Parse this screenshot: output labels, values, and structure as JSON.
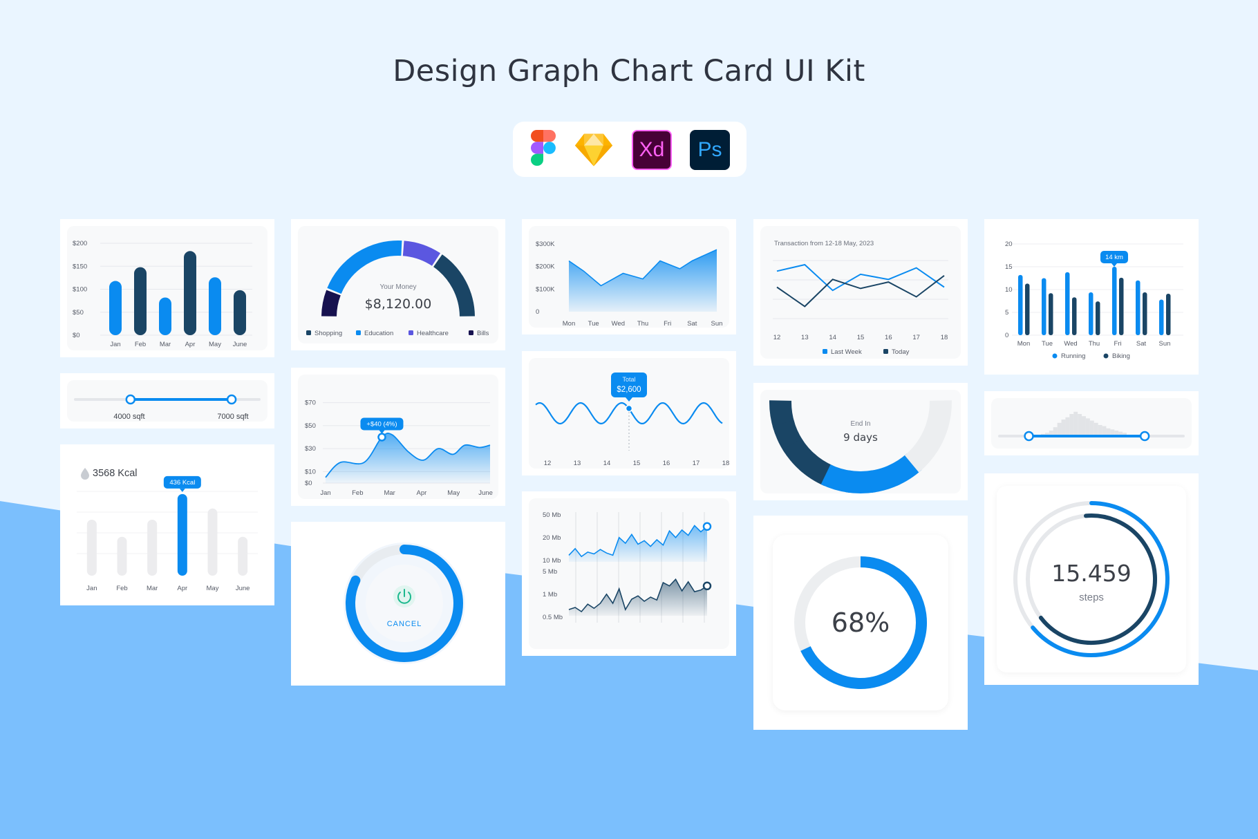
{
  "page": {
    "title": "Design Graph Chart Card UI Kit",
    "tools": [
      {
        "name": "Figma",
        "icon": "figma-icon"
      },
      {
        "name": "Sketch",
        "icon": "sketch-icon",
        "label": ""
      },
      {
        "name": "Adobe XD",
        "icon": "xd-icon",
        "label": "Xd"
      },
      {
        "name": "Photoshop",
        "icon": "ps-icon",
        "label": "Ps"
      }
    ]
  },
  "colors": {
    "navy": "#1a4565",
    "blue": "#0a8bf0",
    "purple": "#5b57e0",
    "darknavy": "#17124f",
    "bg_light": "#eaf5ff",
    "bg_wave": "#7bbffd"
  },
  "monthly_bars": {
    "chart_data": {
      "type": "bar",
      "categories": [
        "Jan",
        "Feb",
        "Mar",
        "Apr",
        "May",
        "June"
      ],
      "values": [
        118,
        148,
        82,
        183,
        126,
        98
      ],
      "y_ticks": [
        "$200",
        "$150",
        "$100",
        "$50",
        "$0"
      ],
      "ylim": [
        0,
        200
      ],
      "bar_colors": [
        "#0a8bf0",
        "#1a4565",
        "#0a8bf0",
        "#1a4565",
        "#0a8bf0",
        "#1a4565"
      ]
    }
  },
  "money_gauge": {
    "label": "Your Money",
    "value": "$8,120.00",
    "chart_data": {
      "type": "pie",
      "categories": [
        "Bills",
        "Education",
        "Healthcare",
        "Shopping"
      ],
      "values": [
        12,
        40,
        17,
        31
      ],
      "colors": [
        "#17124f",
        "#0a8bf0",
        "#5b57e0",
        "#1a4565"
      ]
    },
    "legend": [
      {
        "label": "Shopping",
        "color": "#1a4565"
      },
      {
        "label": "Education",
        "color": "#0a8bf0"
      },
      {
        "label": "Healthcare",
        "color": "#5b57e0"
      },
      {
        "label": "Bills",
        "color": "#17124f"
      }
    ]
  },
  "weekly_area": {
    "chart_data": {
      "type": "area",
      "categories": [
        "Mon",
        "Tue",
        "Wed",
        "Thu",
        "Fri",
        "Sat",
        "Sun"
      ],
      "values": [
        225,
        180,
        115,
        170,
        145,
        225,
        190,
        225,
        255,
        275
      ],
      "x": [
        0,
        0.6,
        1.3,
        2.2,
        3.0,
        3.7,
        4.5,
        5.0,
        5.6,
        6.0
      ],
      "y_ticks": [
        "$300K",
        "$200K",
        "$100K",
        "0"
      ],
      "ylim": [
        0,
        300
      ]
    }
  },
  "transactions": {
    "caption": "Transaction from 12-18 May, 2023",
    "chart_data": {
      "type": "line",
      "x": [
        "12",
        "13",
        "14",
        "15",
        "16",
        "17",
        "18"
      ],
      "series": [
        {
          "name": "Last Week",
          "values": [
            75,
            85,
            45,
            70,
            62,
            80,
            50
          ]
        },
        {
          "name": "Today",
          "values": [
            50,
            20,
            62,
            48,
            58,
            35,
            68
          ]
        }
      ],
      "ylim": [
        0,
        100
      ]
    }
  },
  "activity_bars": {
    "tooltip": "14 km",
    "chart_data": {
      "type": "bar",
      "categories": [
        "Mon",
        "Tue",
        "Wed",
        "Thu",
        "Fri",
        "Sat",
        "Sun"
      ],
      "series": [
        {
          "name": "Running",
          "values": [
            13.2,
            12.5,
            13.8,
            9.4,
            15.0,
            12.0,
            7.8
          ]
        },
        {
          "name": "Biking",
          "values": [
            11.3,
            9.2,
            8.3,
            7.4,
            12.6,
            9.4,
            9.1
          ]
        }
      ],
      "y_ticks": [
        "20",
        "15",
        "10",
        "5",
        "0"
      ],
      "ylim": [
        0,
        20
      ]
    }
  },
  "sqft_slider": {
    "min_label": "4000 sqft",
    "max_label": "7000 sqft",
    "low": 0.3,
    "high": 0.85
  },
  "price_area": {
    "tooltip": "+$40 (4%)",
    "chart_data": {
      "type": "area",
      "categories": [
        "Jan",
        "Feb",
        "Mar",
        "Apr",
        "May",
        "June"
      ],
      "values": [
        5,
        18,
        18,
        40,
        42,
        27,
        20,
        30,
        25,
        33,
        31,
        33
      ],
      "x": [
        0,
        0.5,
        1.3,
        1.9,
        2.25,
        2.8,
        3.3,
        3.8,
        4.3,
        4.7,
        5.2,
        5.55
      ],
      "y_ticks": [
        "$70",
        "$50",
        "$30",
        "$10",
        "$0"
      ],
      "ylim": [
        0,
        80
      ]
    }
  },
  "wave_total": {
    "tooltip_label": "Total",
    "tooltip_value": "$2,600",
    "chart_data": {
      "type": "line",
      "x": [
        "12",
        "13",
        "14",
        "15",
        "16",
        "17",
        "18"
      ]
    }
  },
  "days_gauge": {
    "label": "End In",
    "value": "9 days"
  },
  "histogram_slider": {
    "low": 0.16,
    "high": 0.79,
    "chart_data": {
      "type": "bar",
      "values": [
        2,
        3,
        5,
        8,
        12,
        15,
        17,
        20,
        22,
        20,
        18,
        16,
        14,
        12,
        10,
        9,
        7,
        6,
        5,
        4,
        3
      ]
    }
  },
  "kcal": {
    "title": "3568 Kcal",
    "tooltip": "436 Kcal",
    "chart_data": {
      "type": "bar",
      "categories": [
        "Jan",
        "Feb",
        "Mar",
        "Apr",
        "May",
        "June"
      ],
      "values": [
        360,
        250,
        360,
        525,
        432,
        250
      ],
      "highlight": "Apr"
    }
  },
  "timer": {
    "cancel_label": "CANCEL",
    "progress": 0.82
  },
  "bandwidth": {
    "chart_data": [
      {
        "type": "area",
        "y_ticks": [
          "50 Mb",
          "20 Mb",
          "10 Mb"
        ],
        "values": [
          15,
          30,
          12,
          22,
          18,
          28,
          20,
          15,
          55,
          42,
          62,
          40,
          48,
          35,
          50,
          38,
          70,
          55,
          72,
          60,
          82,
          68,
          80
        ]
      },
      {
        "type": "area",
        "y_ticks": [
          "5 Mb",
          "1 Mb",
          "0.5 Mb"
        ],
        "values": [
          15,
          20,
          10,
          28,
          18,
          30,
          52,
          30,
          65,
          15,
          40,
          48,
          35,
          45,
          38,
          80,
          72,
          88,
          60,
          82,
          58,
          62,
          72
        ]
      }
    ]
  },
  "percent": {
    "value": "68%",
    "progress": 0.68
  },
  "steps": {
    "value": "15.459",
    "unit": "steps",
    "outer_progress": 0.64,
    "inner_progress": 0.66
  }
}
